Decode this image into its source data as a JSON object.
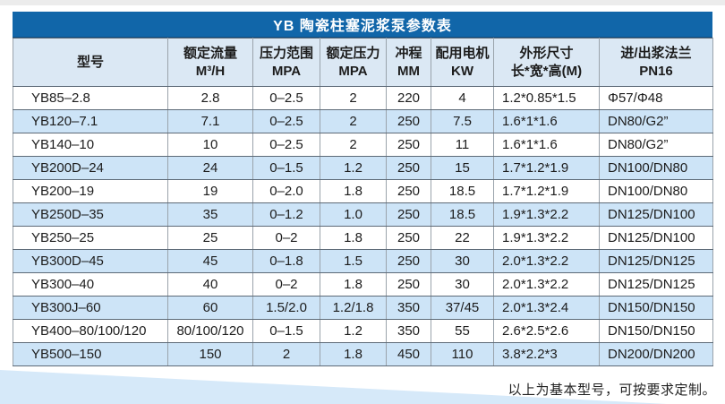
{
  "title": "YB 陶瓷柱塞泥浆泵参数表",
  "colors": {
    "title_bar_bg": "#1166a9",
    "title_text": "#ffffff",
    "header_bg": "#dbe8f4",
    "alt_row_bg": "#cde4f7",
    "grid_horizontal": "#5d6a77",
    "grid_vertical": "#9aa3ab",
    "wedge_bg": "#d6e9f9"
  },
  "table": {
    "columns": [
      {
        "line1": "型号",
        "line2": ""
      },
      {
        "line1": "额定流量",
        "line2": "M³/H"
      },
      {
        "line1": "压力范围",
        "line2": "MPA"
      },
      {
        "line1": "额定压力",
        "line2": "MPA"
      },
      {
        "line1": "冲程",
        "line2": "MM"
      },
      {
        "line1": "配用电机",
        "line2": "KW"
      },
      {
        "line1": "外形尺寸",
        "line2": "长*宽*高(M)"
      },
      {
        "line1": "进/出浆法兰",
        "line2": "PN16"
      }
    ],
    "rows": [
      [
        "YB85–2.8",
        "2.8",
        "0–2.5",
        "2",
        "220",
        "4",
        "1.2*0.85*1.5",
        "Φ57/Φ48"
      ],
      [
        "YB120–7.1",
        "7.1",
        "0–2.5",
        "2",
        "250",
        "7.5",
        "1.6*1*1.6",
        "DN80/G2”"
      ],
      [
        "YB140–10",
        "10",
        "0–2.5",
        "2",
        "250",
        "11",
        "1.6*1*1.6",
        "DN80/G2”"
      ],
      [
        "YB200D–24",
        "24",
        "0–1.5",
        "1.2",
        "250",
        "15",
        "1.7*1.2*1.9",
        "DN100/DN80"
      ],
      [
        "YB200–19",
        "19",
        "0–2.0",
        "1.8",
        "250",
        "18.5",
        "1.7*1.2*1.9",
        "DN100/DN80"
      ],
      [
        "YB250D–35",
        "35",
        "0–1.2",
        "1.0",
        "250",
        "18.5",
        "1.9*1.3*2.2",
        "DN125/DN100"
      ],
      [
        "YB250–25",
        "25",
        "0–2",
        "1.8",
        "250",
        "22",
        "1.9*1.3*2.2",
        "DN125/DN100"
      ],
      [
        "YB300D–45",
        "45",
        "0–1.8",
        "1.5",
        "250",
        "30",
        "2.0*1.3*2.2",
        "DN125/DN125"
      ],
      [
        "YB300–40",
        "40",
        "0–2",
        "1.8",
        "250",
        "30",
        "2.0*1.3*2.2",
        "DN125/DN125"
      ],
      [
        "YB300J–60",
        "60",
        "1.5/2.0",
        "1.2/1.8",
        "350",
        "37/45",
        "2.0*1.3*2.4",
        "DN150/DN150"
      ],
      [
        "YB400–80/100/120",
        "80/100/120",
        "0–1.5",
        "1.2",
        "350",
        "55",
        "2.6*2.5*2.6",
        "DN150/DN150"
      ],
      [
        "YB500–150",
        "150",
        "2",
        "1.8",
        "450",
        "110",
        "3.8*2.2*3",
        "DN200/DN200"
      ]
    ]
  },
  "footer": {
    "note": "以上为基本型号，可按要求定制。"
  }
}
